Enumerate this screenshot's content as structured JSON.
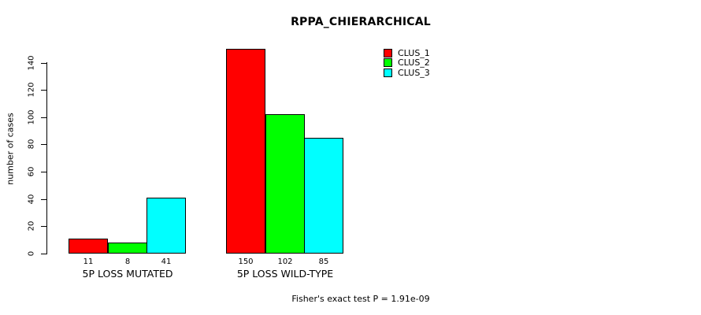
{
  "chart_data": {
    "type": "bar",
    "title": "RPPA_CHIERARCHICAL",
    "xlabel": "",
    "ylabel": "number of cases",
    "ylim": [
      0,
      140
    ],
    "yticks": [
      0,
      20,
      40,
      60,
      80,
      100,
      120,
      140
    ],
    "grid": false,
    "categories": [
      "5P LOSS MUTATED",
      "5P LOSS WILD-TYPE"
    ],
    "series": [
      {
        "name": "CLUS_1",
        "color": "#ff0000",
        "values": [
          11,
          150
        ]
      },
      {
        "name": "CLUS_2",
        "color": "#00ff00",
        "values": [
          8,
          102
        ]
      },
      {
        "name": "CLUS_3",
        "color": "#00ffff",
        "values": [
          41,
          85
        ]
      }
    ],
    "bar_value_labels": [
      [
        "11",
        "8",
        "41"
      ],
      [
        "150",
        "102",
        "85"
      ]
    ],
    "legend_position": "top-right",
    "legend_entries": [
      "CLUS_1",
      "CLUS_2",
      "CLUS_3"
    ],
    "annotation": "Fisher's exact test P = 1.91e-09"
  }
}
